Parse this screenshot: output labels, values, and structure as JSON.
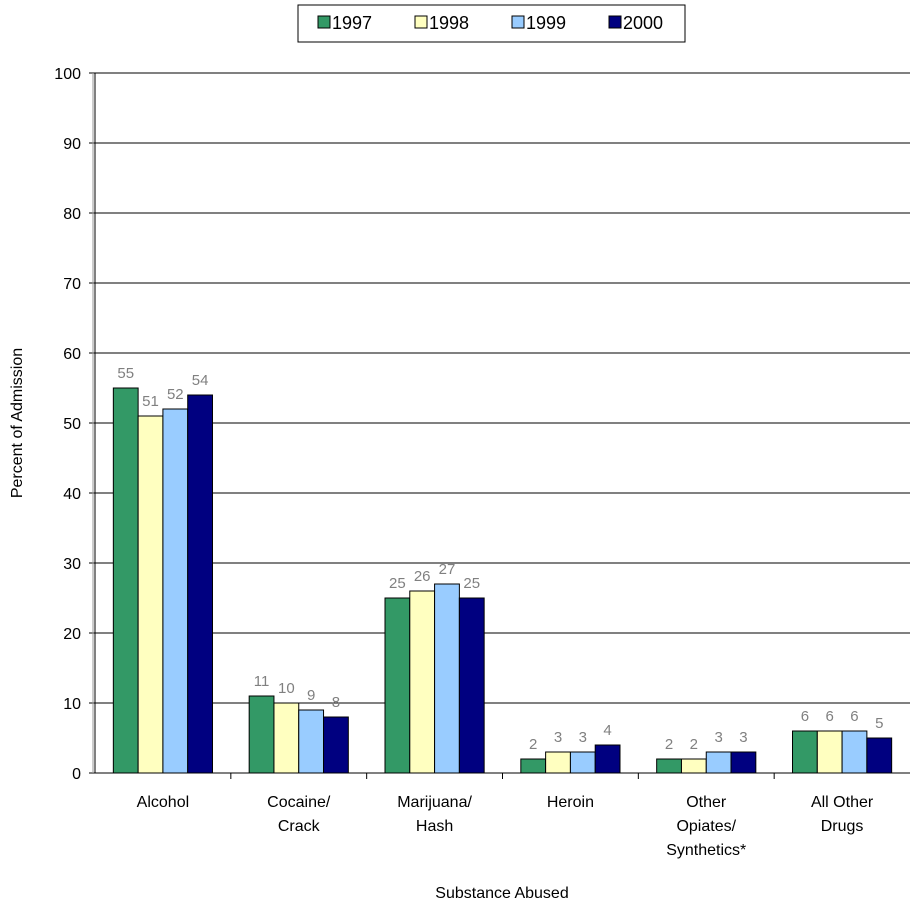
{
  "chart_data": {
    "type": "bar",
    "x_label": "Substance Abused",
    "y_label": "Percent of Admission",
    "categories": [
      "Alcohol",
      "Cocaine/\nCrack",
      "Marijuana/\nHash",
      "Heroin",
      "Other\nOpiates/\nSynthetics*",
      "All Other\nDrugs"
    ],
    "series": [
      {
        "name": "1997",
        "color": "#339966",
        "values": [
          55,
          11,
          25,
          2,
          2,
          6
        ]
      },
      {
        "name": "1998",
        "color": "#FFFFC0",
        "values": [
          51,
          10,
          26,
          3,
          2,
          6
        ]
      },
      {
        "name": "1999",
        "color": "#99CCFF",
        "values": [
          52,
          9,
          27,
          3,
          3,
          6
        ]
      },
      {
        "name": "2000",
        "color": "#000080",
        "values": [
          54,
          8,
          25,
          4,
          3,
          5
        ]
      }
    ],
    "ylim": [
      0,
      100
    ],
    "yticks": [
      0,
      10,
      20,
      30,
      40,
      50,
      60,
      70,
      80,
      90,
      100
    ],
    "grid": true,
    "legend": "top"
  }
}
